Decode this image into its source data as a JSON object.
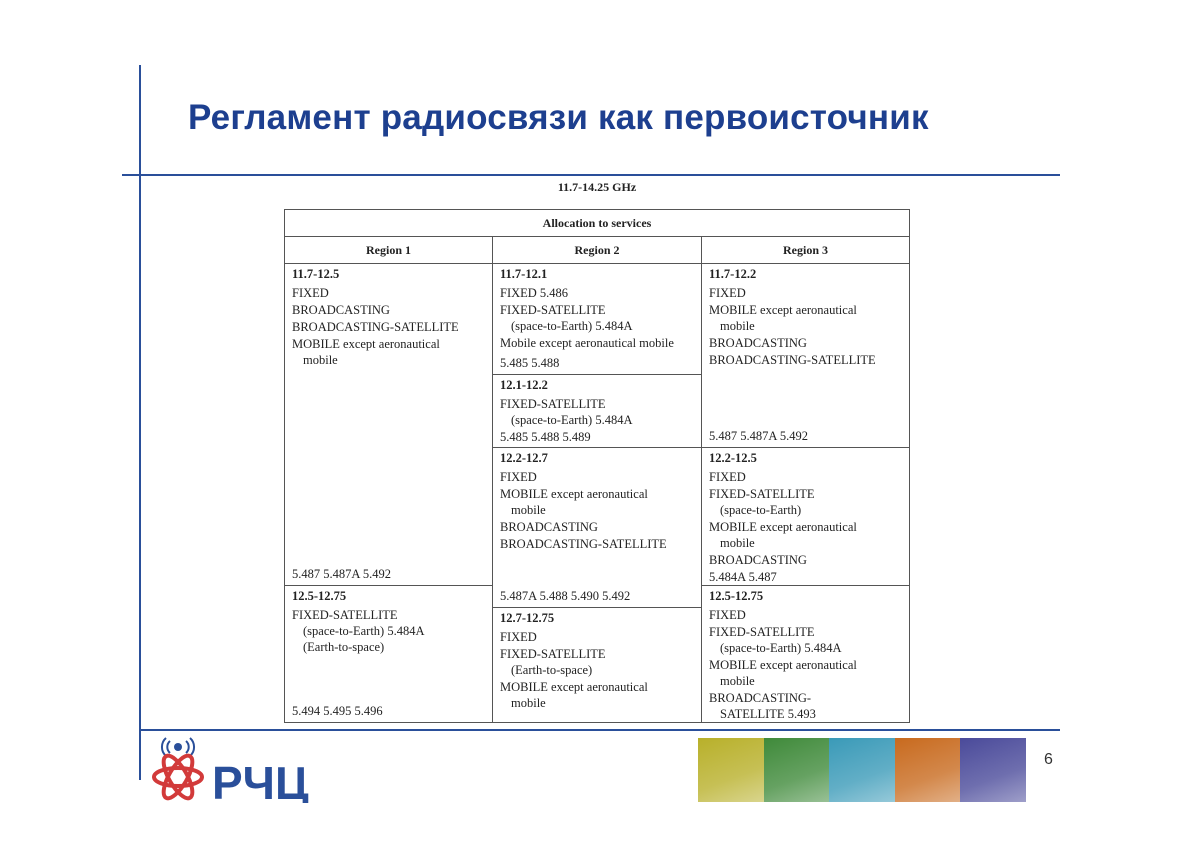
{
  "slide": {
    "title": "Регламент радиосвязи как первоисточник",
    "page_number": "6",
    "logo_text": "РЧЦ",
    "accent_color": "#1d3f8f"
  },
  "table": {
    "band": "11.7-14.25 GHz",
    "header": "Allocation to services",
    "regions": [
      "Region 1",
      "Region 2",
      "Region 3"
    ],
    "cells": {
      "r1a": {
        "range": "11.7-12.5",
        "services": [
          [
            "FIXED"
          ],
          [
            "BROADCASTING"
          ],
          [
            "BROADCASTING-SATELLITE"
          ],
          [
            "MOBILE except aeronautical",
            "mobile"
          ]
        ],
        "footnotes": "5.487  5.487A  5.492"
      },
      "r1b": {
        "range": "12.5-12.75",
        "services": [
          [
            "FIXED-SATELLITE",
            "(space-to-Earth)  5.484A",
            "(Earth-to-space)"
          ]
        ],
        "footnotes": "5.494  5.495  5.496"
      },
      "r2a": {
        "range": "11.7-12.1",
        "services": [
          [
            "FIXED  5.486"
          ],
          [
            "FIXED-SATELLITE",
            "(space-to-Earth)  5.484A"
          ],
          [
            "Mobile except aeronautical mobile"
          ]
        ],
        "footnotes": "5.485  5.488"
      },
      "r2b": {
        "range": "12.1-12.2",
        "services": [
          [
            "FIXED-SATELLITE",
            "(space-to-Earth)  5.484A"
          ]
        ],
        "footnotes": "5.485  5.488  5.489"
      },
      "r2c": {
        "range": "12.2-12.7",
        "services": [
          [
            "FIXED"
          ],
          [
            "MOBILE except aeronautical",
            "mobile"
          ],
          [
            "BROADCASTING"
          ],
          [
            "BROADCASTING-SATELLITE"
          ]
        ],
        "footnotes": "5.487A  5.488  5.490  5.492"
      },
      "r2d": {
        "range": "12.7-12.75",
        "services": [
          [
            "FIXED"
          ],
          [
            "FIXED-SATELLITE",
            "(Earth-to-space)"
          ],
          [
            "MOBILE except aeronautical",
            "mobile"
          ]
        ],
        "footnotes": ""
      },
      "r3a": {
        "range": "11.7-12.2",
        "services": [
          [
            "FIXED"
          ],
          [
            "MOBILE except aeronautical",
            "mobile"
          ],
          [
            "BROADCASTING"
          ],
          [
            "BROADCASTING-SATELLITE"
          ]
        ],
        "footnotes": "5.487  5.487A  5.492"
      },
      "r3b": {
        "range": "12.2-12.5",
        "services": [
          [
            "FIXED"
          ],
          [
            "FIXED-SATELLITE",
            "(space-to-Earth)"
          ],
          [
            "MOBILE except aeronautical",
            "mobile"
          ],
          [
            "BROADCASTING"
          ]
        ],
        "footnotes": "5.484A  5.487"
      },
      "r3c": {
        "range": "12.5-12.75",
        "services": [
          [
            "FIXED"
          ],
          [
            "FIXED-SATELLITE",
            "(space-to-Earth)  5.484A"
          ],
          [
            "MOBILE except aeronautical",
            "mobile"
          ],
          [
            "BROADCASTING-",
            "SATELLITE  5.493"
          ]
        ],
        "footnotes": ""
      }
    }
  },
  "photo_strip_colors": [
    "#b8b02a",
    "#3f8a3a",
    "#3a9ab8",
    "#c86a1e",
    "#4a4a9a"
  ]
}
